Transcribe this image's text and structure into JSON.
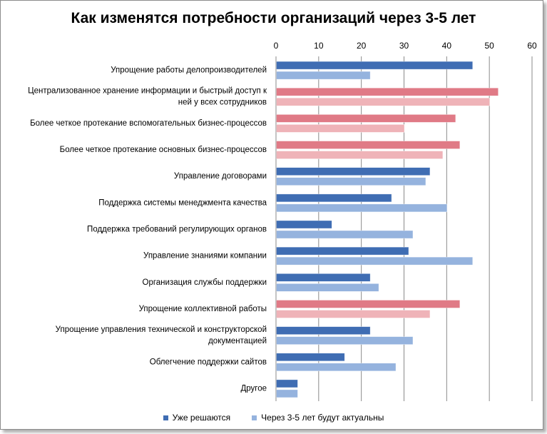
{
  "chart_data": {
    "type": "bar",
    "orientation": "horizontal",
    "title": "Как изменятся потребности организаций через 3-5 лет",
    "xlabel": "",
    "ylabel": "",
    "xlim": [
      0,
      60
    ],
    "x_ticks": [
      "0",
      "10",
      "20",
      "30",
      "40",
      "50",
      "60"
    ],
    "grid": true,
    "legend_position": "bottom",
    "categories": [
      [
        "Упрощение работы делопроизводителей"
      ],
      [
        "Централизованное хранение информации и быстрый доступ к",
        "ней у всех сотрудников"
      ],
      [
        "Более четкое протекание вспомогательных бизнес-процессов"
      ],
      [
        "Более четкое протекание основных бизнес-процессов"
      ],
      [
        "Управление договорами"
      ],
      [
        "Поддержка системы менеджмента качества"
      ],
      [
        "Поддержка требований регулирующих органов"
      ],
      [
        "Управление знаниями компании"
      ],
      [
        "Организация службы поддержки"
      ],
      [
        "Упрощение коллективной работы"
      ],
      [
        "Упрощение управления технической и конструкторской",
        "документацией"
      ],
      [
        "Облегчение поддержки сайтов"
      ],
      [
        "Другое"
      ]
    ],
    "highlighted_categories": [
      1,
      2,
      3,
      9
    ],
    "series": [
      {
        "name": "Уже решаются",
        "color": "#3f6db3",
        "highlight_color": "#e07a86",
        "values": [
          46,
          52,
          42,
          43,
          36,
          27,
          13,
          31,
          22,
          43,
          22,
          16,
          5
        ]
      },
      {
        "name": "Через 3-5 лет будут актуальны",
        "color": "#95b3de",
        "highlight_color": "#efb3b8",
        "values": [
          22,
          50,
          30,
          39,
          35,
          40,
          32,
          46,
          24,
          36,
          32,
          28,
          5
        ]
      }
    ]
  }
}
